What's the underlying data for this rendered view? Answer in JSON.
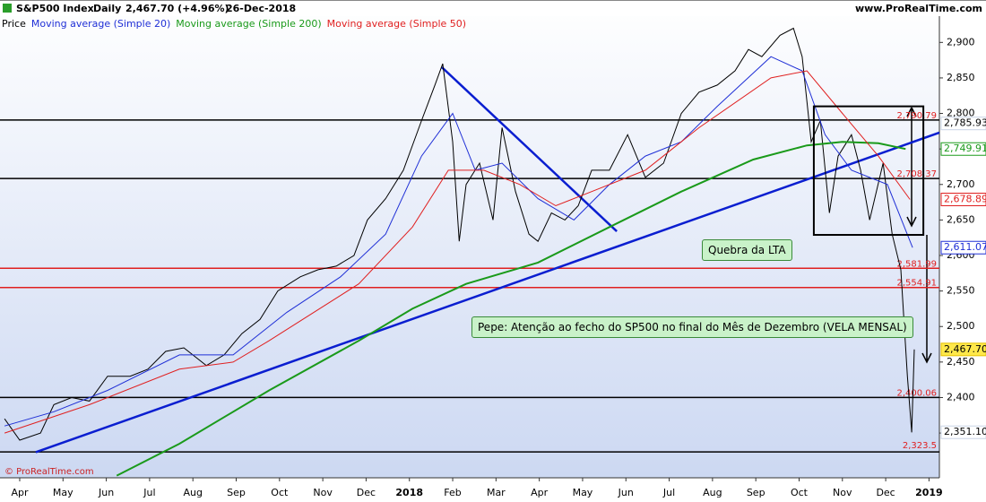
{
  "header": {
    "title": "S&P500 Index",
    "period": "Daily",
    "quote": "2,467.70 (+4.96%)",
    "date": "26-Dec-2018",
    "site": "www.ProRealTime.com",
    "footer": "© ProRealTime.com"
  },
  "chart_data": {
    "type": "line",
    "xlim": [
      -0.455,
      21.24
    ],
    "ylim": [
      2287,
      2937
    ],
    "xticks": [
      {
        "value": 0,
        "label": "Apr"
      },
      {
        "value": 1,
        "label": "May"
      },
      {
        "value": 2,
        "label": "Jun"
      },
      {
        "value": 3,
        "label": "Jul"
      },
      {
        "value": 4,
        "label": "Aug"
      },
      {
        "value": 5,
        "label": "Sep"
      },
      {
        "value": 6,
        "label": "Oct"
      },
      {
        "value": 7,
        "label": "Nov"
      },
      {
        "value": 8,
        "label": "Dec"
      },
      {
        "value": 9,
        "label": "2018"
      },
      {
        "value": 10,
        "label": "Feb"
      },
      {
        "value": 11,
        "label": "Mar"
      },
      {
        "value": 12,
        "label": "Apr"
      },
      {
        "value": 13,
        "label": "May"
      },
      {
        "value": 14,
        "label": "Jun"
      },
      {
        "value": 15,
        "label": "Jul"
      },
      {
        "value": 16,
        "label": "Aug"
      },
      {
        "value": 17,
        "label": "Sep"
      },
      {
        "value": 18,
        "label": "Oct"
      },
      {
        "value": 19,
        "label": "Nov"
      },
      {
        "value": 20,
        "label": "Dec"
      },
      {
        "value": 21,
        "label": "2019"
      }
    ],
    "yticks": [
      {
        "value": 2350,
        "label": "2,350"
      },
      {
        "value": 2400,
        "label": "2,400"
      },
      {
        "value": 2450,
        "label": "2,450"
      },
      {
        "value": 2500,
        "label": "2,500"
      },
      {
        "value": 2550,
        "label": "2,550"
      },
      {
        "value": 2600,
        "label": "2,600"
      },
      {
        "value": 2650,
        "label": "2,650"
      },
      {
        "value": 2700,
        "label": "2,700"
      },
      {
        "value": 2750,
        "label": "2,750"
      },
      {
        "value": 2800,
        "label": "2,800"
      },
      {
        "value": 2850,
        "label": "2,850"
      },
      {
        "value": 2900,
        "label": "2,900"
      }
    ],
    "series": [
      {
        "name": "Price",
        "color": "#000000",
        "x": [
          -0.35,
          0,
          0.48,
          0.79,
          1.2,
          1.61,
          2.03,
          2.55,
          2.96,
          3.37,
          3.79,
          4.31,
          4.72,
          5.13,
          5.55,
          5.96,
          6.48,
          6.89,
          7.31,
          7.72,
          8.03,
          8.45,
          8.86,
          9.28,
          9.59,
          9.77,
          10.0,
          10.15,
          10.31,
          10.62,
          10.93,
          11.14,
          11.45,
          11.76,
          11.97,
          12.28,
          12.59,
          12.9,
          13.21,
          13.62,
          14.04,
          14.45,
          14.87,
          15.28,
          15.69,
          16.11,
          16.52,
          16.83,
          17.14,
          17.56,
          17.87,
          18.07,
          18.28,
          18.49,
          18.7,
          18.9,
          19.21,
          19.42,
          19.63,
          19.94,
          20.15,
          20.35,
          20.5,
          20.6,
          20.66
        ],
        "values": [
          2370,
          2340,
          2350,
          2390,
          2400,
          2395,
          2430,
          2430,
          2440,
          2465,
          2470,
          2445,
          2460,
          2490,
          2510,
          2550,
          2570,
          2580,
          2585,
          2600,
          2650,
          2680,
          2720,
          2790,
          2840,
          2870,
          2760,
          2620,
          2700,
          2730,
          2650,
          2780,
          2690,
          2630,
          2620,
          2660,
          2650,
          2670,
          2720,
          2720,
          2770,
          2710,
          2730,
          2800,
          2830,
          2840,
          2860,
          2890,
          2880,
          2910,
          2920,
          2880,
          2760,
          2790,
          2660,
          2740,
          2770,
          2720,
          2650,
          2730,
          2630,
          2580,
          2430,
          2351,
          2467.7
        ]
      },
      {
        "name": "Moving average (Simple 20)",
        "color": "#1f2fd6",
        "x": [
          -0.35,
          0.79,
          2.03,
          3.69,
          4.93,
          6.17,
          7.41,
          8.45,
          9.28,
          10.0,
          10.52,
          11.14,
          11.97,
          12.8,
          13.62,
          14.45,
          15.28,
          16.11,
          17.35,
          18.07,
          18.6,
          19.21,
          20.04,
          20.62
        ],
        "values": [
          2360,
          2380,
          2410,
          2460,
          2460,
          2520,
          2570,
          2630,
          2740,
          2800,
          2720,
          2730,
          2680,
          2650,
          2700,
          2740,
          2760,
          2810,
          2880,
          2860,
          2770,
          2720,
          2700,
          2611.07
        ]
      },
      {
        "name": "Moving average (Simple 200)",
        "color": "#1a9a1a",
        "x": [
          2.24,
          3.69,
          5.76,
          7.83,
          9.07,
          10.31,
          11.97,
          13.62,
          15.28,
          16.94,
          18.18,
          19.0,
          19.83,
          20.46
        ],
        "values": [
          2290,
          2335,
          2410,
          2480,
          2525,
          2560,
          2590,
          2640,
          2690,
          2735,
          2755,
          2760,
          2758,
          2749.91
        ]
      },
      {
        "name": "Moving average (Simple 50)",
        "color": "#e02020",
        "x": [
          -0.35,
          1.61,
          3.69,
          4.93,
          5.76,
          7.83,
          9.07,
          9.9,
          10.72,
          11.55,
          12.38,
          13.21,
          14.45,
          15.69,
          17.35,
          18.18,
          19.0,
          19.83,
          20.56
        ],
        "values": [
          2350,
          2390,
          2440,
          2450,
          2480,
          2560,
          2640,
          2720,
          2720,
          2700,
          2670,
          2690,
          2720,
          2780,
          2850,
          2860,
          2800,
          2740,
          2678.89
        ]
      }
    ],
    "levels": [
      {
        "value": 2790.79,
        "label": "2,790.79",
        "color": "#000000"
      },
      {
        "value": 2708.37,
        "label": "2,708.37",
        "color": "#000000"
      },
      {
        "value": 2581.99,
        "label": "2,581.99",
        "color": "#e02020"
      },
      {
        "value": 2554.91,
        "label": "2,554.91",
        "color": "#e02020"
      },
      {
        "value": 2400.06,
        "label": "2,400.06",
        "color": "#000000"
      },
      {
        "value": 2323.5,
        "label": "2,323.5",
        "color": "#000000"
      }
    ],
    "price_tags": [
      {
        "value": 2785.93,
        "label": "2,785.93",
        "color": "#c9d4e6"
      },
      {
        "value": 2749.91,
        "label": "2,749.91",
        "color": "#1a9a1a"
      },
      {
        "value": 2678.89,
        "label": "2,678.89",
        "color": "#e02020"
      },
      {
        "value": 2611.07,
        "label": "2,611.07",
        "color": "#1f2fd6"
      },
      {
        "value": 2467.7,
        "label": "2,467.70",
        "color": "#e6c200"
      },
      {
        "value": 2351.1,
        "label": "2,351.10",
        "color": "#c9d4e6"
      }
    ],
    "trendlines": [
      {
        "color": "#0a1ed0",
        "x": [
          0.37,
          21.24
        ],
        "y": [
          2323,
          2773
        ]
      },
      {
        "color": "#0a1ed0",
        "x": [
          9.75,
          13.79
        ],
        "y": [
          2865,
          2634
        ]
      }
    ],
    "box": {
      "x": [
        18.34,
        20.87
      ],
      "y": [
        2629,
        2810
      ]
    },
    "annotations": [
      "Quebra da LTA",
      "Pepe: Atenção ao fecho do SP500 no final do Mês de Dezembro (VELA MENSAL)"
    ]
  }
}
